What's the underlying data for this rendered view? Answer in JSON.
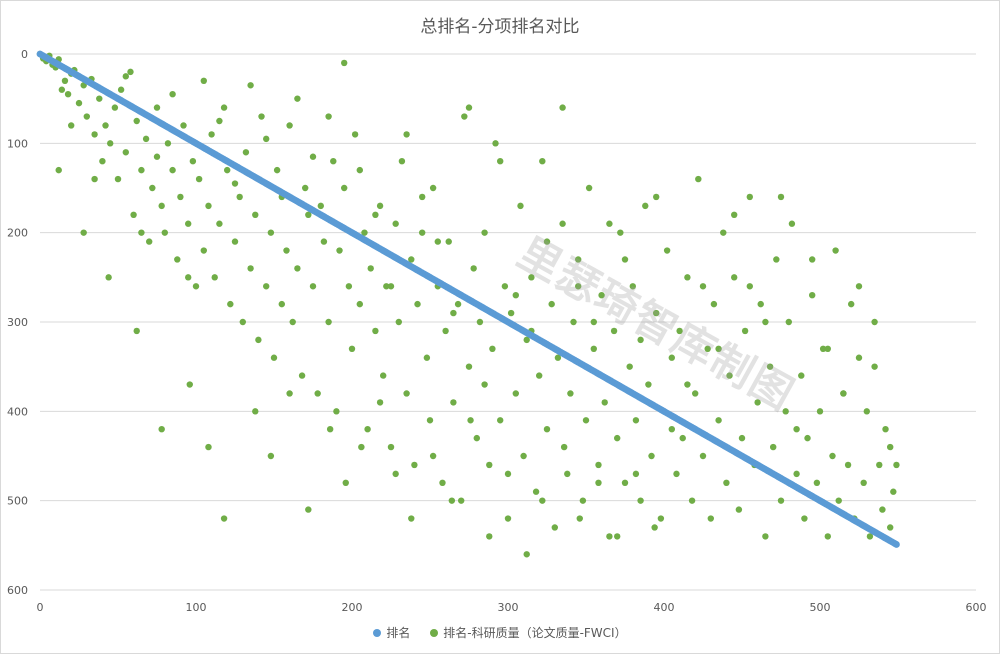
{
  "chart_data": {
    "type": "scatter",
    "title": "总排名-分项排名对比",
    "watermark": "里瑟琦智库制图",
    "xlim": [
      0,
      600
    ],
    "ylim": [
      0,
      600
    ],
    "y_inverted": true,
    "x_ticks": [
      "0",
      "100",
      "200",
      "300",
      "400",
      "500",
      "600"
    ],
    "y_ticks": [
      "0",
      "100",
      "200",
      "300",
      "400",
      "500",
      "600"
    ],
    "grid": "horizontal",
    "legend_position": "bottom",
    "series": [
      {
        "name": "排名",
        "color": "#5b9bd5",
        "marker": "circle",
        "data_rule": "y = x for x = 0..549",
        "x_range": [
          0,
          549
        ]
      },
      {
        "name": "排名-科研质量（论文质量-FWCI）",
        "color": "#70ad47",
        "marker": "circle",
        "points": [
          [
            0,
            0
          ],
          [
            2,
            5
          ],
          [
            4,
            8
          ],
          [
            6,
            2
          ],
          [
            8,
            12
          ],
          [
            10,
            15
          ],
          [
            12,
            6
          ],
          [
            14,
            40
          ],
          [
            16,
            30
          ],
          [
            18,
            45
          ],
          [
            20,
            22
          ],
          [
            22,
            18
          ],
          [
            25,
            55
          ],
          [
            28,
            35
          ],
          [
            30,
            70
          ],
          [
            33,
            28
          ],
          [
            35,
            90
          ],
          [
            38,
            50
          ],
          [
            40,
            120
          ],
          [
            42,
            80
          ],
          [
            45,
            100
          ],
          [
            48,
            60
          ],
          [
            50,
            140
          ],
          [
            52,
            40
          ],
          [
            55,
            110
          ],
          [
            58,
            20
          ],
          [
            60,
            180
          ],
          [
            62,
            75
          ],
          [
            65,
            130
          ],
          [
            68,
            95
          ],
          [
            70,
            210
          ],
          [
            72,
            150
          ],
          [
            75,
            60
          ],
          [
            78,
            170
          ],
          [
            80,
            200
          ],
          [
            82,
            100
          ],
          [
            85,
            130
          ],
          [
            88,
            230
          ],
          [
            90,
            160
          ],
          [
            92,
            80
          ],
          [
            95,
            190
          ],
          [
            98,
            120
          ],
          [
            100,
            260
          ],
          [
            102,
            140
          ],
          [
            105,
            220
          ],
          [
            108,
            170
          ],
          [
            110,
            90
          ],
          [
            112,
            250
          ],
          [
            115,
            190
          ],
          [
            118,
            60
          ],
          [
            120,
            130
          ],
          [
            122,
            280
          ],
          [
            125,
            210
          ],
          [
            128,
            160
          ],
          [
            130,
            300
          ],
          [
            132,
            110
          ],
          [
            135,
            240
          ],
          [
            138,
            180
          ],
          [
            140,
            320
          ],
          [
            142,
            70
          ],
          [
            145,
            260
          ],
          [
            148,
            200
          ],
          [
            150,
            340
          ],
          [
            152,
            130
          ],
          [
            155,
            280
          ],
          [
            158,
            220
          ],
          [
            160,
            80
          ],
          [
            162,
            300
          ],
          [
            165,
            240
          ],
          [
            168,
            360
          ],
          [
            170,
            150
          ],
          [
            172,
            180
          ],
          [
            175,
            260
          ],
          [
            178,
            380
          ],
          [
            180,
            170
          ],
          [
            182,
            210
          ],
          [
            185,
            300
          ],
          [
            188,
            120
          ],
          [
            190,
            400
          ],
          [
            192,
            220
          ],
          [
            195,
            150
          ],
          [
            198,
            260
          ],
          [
            200,
            330
          ],
          [
            202,
            90
          ],
          [
            205,
            280
          ],
          [
            208,
            200
          ],
          [
            210,
            420
          ],
          [
            212,
            240
          ],
          [
            215,
            310
          ],
          [
            218,
            170
          ],
          [
            220,
            360
          ],
          [
            222,
            260
          ],
          [
            225,
            440
          ],
          [
            228,
            190
          ],
          [
            230,
            300
          ],
          [
            232,
            120
          ],
          [
            235,
            380
          ],
          [
            238,
            230
          ],
          [
            240,
            460
          ],
          [
            242,
            280
          ],
          [
            245,
            200
          ],
          [
            248,
            340
          ],
          [
            250,
            410
          ],
          [
            252,
            150
          ],
          [
            255,
            260
          ],
          [
            258,
            480
          ],
          [
            260,
            310
          ],
          [
            262,
            210
          ],
          [
            265,
            390
          ],
          [
            268,
            280
          ],
          [
            270,
            500
          ],
          [
            272,
            70
          ],
          [
            275,
            350
          ],
          [
            278,
            240
          ],
          [
            280,
            430
          ],
          [
            282,
            300
          ],
          [
            285,
            200
          ],
          [
            288,
            460
          ],
          [
            290,
            330
          ],
          [
            292,
            100
          ],
          [
            295,
            410
          ],
          [
            298,
            260
          ],
          [
            300,
            520
          ],
          [
            302,
            290
          ],
          [
            305,
            380
          ],
          [
            308,
            170
          ],
          [
            310,
            450
          ],
          [
            312,
            320
          ],
          [
            315,
            250
          ],
          [
            318,
            490
          ],
          [
            320,
            360
          ],
          [
            322,
            120
          ],
          [
            325,
            420
          ],
          [
            328,
            280
          ],
          [
            330,
            530
          ],
          [
            332,
            340
          ],
          [
            335,
            190
          ],
          [
            338,
            470
          ],
          [
            340,
            380
          ],
          [
            342,
            300
          ],
          [
            345,
            230
          ],
          [
            348,
            500
          ],
          [
            350,
            410
          ],
          [
            352,
            150
          ],
          [
            355,
            330
          ],
          [
            358,
            460
          ],
          [
            360,
            270
          ],
          [
            362,
            390
          ],
          [
            365,
            540
          ],
          [
            368,
            310
          ],
          [
            370,
            430
          ],
          [
            372,
            200
          ],
          [
            375,
            480
          ],
          [
            378,
            350
          ],
          [
            380,
            260
          ],
          [
            382,
            410
          ],
          [
            385,
            500
          ],
          [
            388,
            170
          ],
          [
            390,
            370
          ],
          [
            392,
            450
          ],
          [
            395,
            290
          ],
          [
            398,
            520
          ],
          [
            400,
            400
          ],
          [
            402,
            220
          ],
          [
            405,
            340
          ],
          [
            408,
            470
          ],
          [
            410,
            310
          ],
          [
            412,
            430
          ],
          [
            415,
            250
          ],
          [
            418,
            500
          ],
          [
            420,
            380
          ],
          [
            422,
            140
          ],
          [
            425,
            450
          ],
          [
            428,
            330
          ],
          [
            430,
            520
          ],
          [
            432,
            280
          ],
          [
            435,
            410
          ],
          [
            438,
            200
          ],
          [
            440,
            480
          ],
          [
            442,
            360
          ],
          [
            445,
            250
          ],
          [
            448,
            510
          ],
          [
            450,
            430
          ],
          [
            452,
            310
          ],
          [
            455,
            160
          ],
          [
            458,
            460
          ],
          [
            460,
            390
          ],
          [
            462,
            280
          ],
          [
            465,
            540
          ],
          [
            468,
            350
          ],
          [
            470,
            440
          ],
          [
            472,
            230
          ],
          [
            475,
            500
          ],
          [
            478,
            400
          ],
          [
            480,
            300
          ],
          [
            482,
            190
          ],
          [
            485,
            470
          ],
          [
            488,
            360
          ],
          [
            490,
            520
          ],
          [
            492,
            430
          ],
          [
            495,
            270
          ],
          [
            498,
            480
          ],
          [
            500,
            400
          ],
          [
            502,
            330
          ],
          [
            505,
            540
          ],
          [
            508,
            450
          ],
          [
            510,
            220
          ],
          [
            512,
            500
          ],
          [
            515,
            380
          ],
          [
            518,
            460
          ],
          [
            520,
            280
          ],
          [
            522,
            520
          ],
          [
            525,
            340
          ],
          [
            528,
            480
          ],
          [
            530,
            400
          ],
          [
            532,
            540
          ],
          [
            535,
            300
          ],
          [
            538,
            460
          ],
          [
            540,
            510
          ],
          [
            542,
            420
          ],
          [
            545,
            530
          ],
          [
            547,
            490
          ],
          [
            549,
            460
          ],
          [
            20,
            80
          ],
          [
            35,
            140
          ],
          [
            55,
            25
          ],
          [
            65,
            200
          ],
          [
            75,
            115
          ],
          [
            85,
            45
          ],
          [
            95,
            250
          ],
          [
            105,
            30
          ],
          [
            115,
            75
          ],
          [
            125,
            145
          ],
          [
            135,
            35
          ],
          [
            145,
            95
          ],
          [
            155,
            160
          ],
          [
            165,
            50
          ],
          [
            175,
            115
          ],
          [
            185,
            70
          ],
          [
            195,
            10
          ],
          [
            205,
            130
          ],
          [
            215,
            180
          ],
          [
            225,
            260
          ],
          [
            235,
            90
          ],
          [
            245,
            160
          ],
          [
            255,
            210
          ],
          [
            265,
            290
          ],
          [
            275,
            60
          ],
          [
            285,
            370
          ],
          [
            295,
            120
          ],
          [
            305,
            270
          ],
          [
            315,
            310
          ],
          [
            325,
            210
          ],
          [
            335,
            60
          ],
          [
            345,
            260
          ],
          [
            355,
            300
          ],
          [
            365,
            190
          ],
          [
            375,
            230
          ],
          [
            385,
            320
          ],
          [
            395,
            160
          ],
          [
            405,
            420
          ],
          [
            415,
            370
          ],
          [
            425,
            260
          ],
          [
            435,
            330
          ],
          [
            445,
            180
          ],
          [
            455,
            260
          ],
          [
            465,
            300
          ],
          [
            475,
            160
          ],
          [
            485,
            420
          ],
          [
            495,
            230
          ],
          [
            505,
            330
          ],
          [
            515,
            380
          ],
          [
            525,
            260
          ],
          [
            535,
            350
          ],
          [
            545,
            440
          ],
          [
            12,
            130
          ],
          [
            28,
            200
          ],
          [
            44,
            250
          ],
          [
            62,
            310
          ],
          [
            78,
            420
          ],
          [
            96,
            370
          ],
          [
            108,
            440
          ],
          [
            118,
            520
          ],
          [
            138,
            400
          ],
          [
            148,
            450
          ],
          [
            160,
            380
          ],
          [
            172,
            510
          ],
          [
            186,
            420
          ],
          [
            196,
            480
          ],
          [
            206,
            440
          ],
          [
            218,
            390
          ],
          [
            228,
            470
          ],
          [
            238,
            520
          ],
          [
            252,
            450
          ],
          [
            264,
            500
          ],
          [
            276,
            410
          ],
          [
            288,
            540
          ],
          [
            300,
            470
          ],
          [
            312,
            560
          ],
          [
            322,
            500
          ],
          [
            336,
            440
          ],
          [
            346,
            520
          ],
          [
            358,
            480
          ],
          [
            370,
            540
          ],
          [
            382,
            470
          ],
          [
            394,
            530
          ]
        ]
      }
    ]
  }
}
